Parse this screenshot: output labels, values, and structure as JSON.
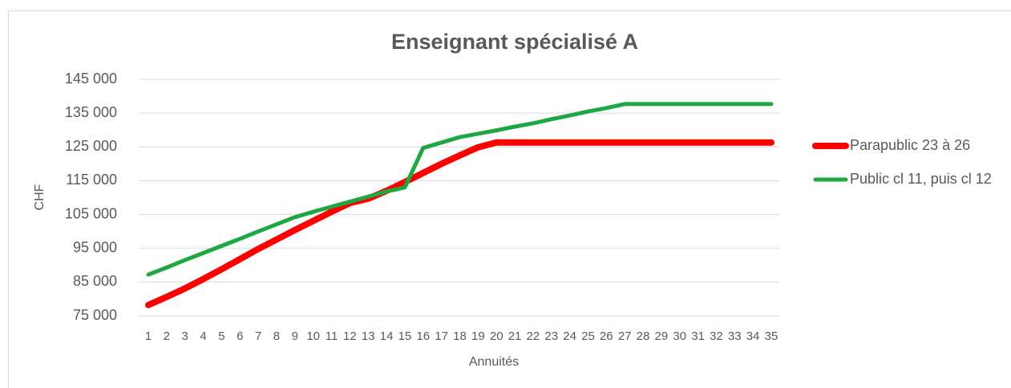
{
  "chart_data": {
    "type": "line",
    "title": "Enseignant spécialisé A",
    "x_label": "Annuités",
    "y_label": "CHF",
    "categories": [
      1,
      2,
      3,
      4,
      5,
      6,
      7,
      8,
      9,
      10,
      11,
      12,
      13,
      14,
      15,
      16,
      17,
      18,
      19,
      20,
      21,
      22,
      23,
      24,
      25,
      26,
      27,
      28,
      29,
      30,
      31,
      32,
      33,
      34,
      35
    ],
    "series": [
      {
        "name": "Parapublic 23 à 26",
        "color": "#ff0000",
        "values": [
          78200,
          80600,
          83100,
          85900,
          88800,
          91800,
          94800,
          97600,
          100400,
          103100,
          105800,
          108400,
          109700,
          112000,
          114600,
          117300,
          120000,
          122500,
          124900,
          126300,
          126300,
          126300,
          126300,
          126300,
          126300,
          126300,
          126300,
          126300,
          126300,
          126300,
          126300,
          126300,
          126300,
          126300,
          126300
        ]
      },
      {
        "name": "Public cl 11, puis cl 12",
        "color": "#1fa743",
        "values": [
          87200,
          89300,
          91500,
          93600,
          95700,
          97800,
          100000,
          102100,
          104200,
          105800,
          107300,
          108800,
          110300,
          111800,
          113000,
          124700,
          126300,
          127900,
          128900,
          129900,
          131000,
          132000,
          133200,
          134300,
          135500,
          136500,
          137700,
          137700,
          137700,
          137700,
          137700,
          137700,
          137700,
          137700,
          137700
        ]
      }
    ],
    "ylim": [
      75000,
      145000
    ],
    "yticks": [
      {
        "value": 75000,
        "label": "75 000"
      },
      {
        "value": 85000,
        "label": "85 000"
      },
      {
        "value": 95000,
        "label": "95 000"
      },
      {
        "value": 105000,
        "label": "105 000"
      },
      {
        "value": 115000,
        "label": "115 000"
      },
      {
        "value": 125000,
        "label": "125 000"
      },
      {
        "value": 135000,
        "label": "135 000"
      },
      {
        "value": 145000,
        "label": "145 000"
      }
    ],
    "grid": true,
    "legend": "right"
  }
}
